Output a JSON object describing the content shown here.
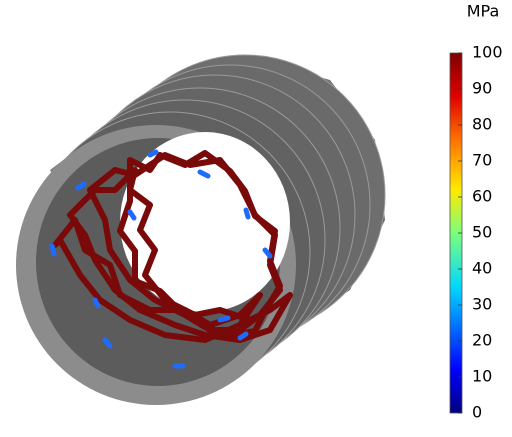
{
  "colorbar": {
    "unit": "MPa",
    "range": [
      0,
      100
    ],
    "ticks": [
      0,
      10,
      20,
      30,
      40,
      50,
      60,
      70,
      80,
      90,
      100
    ]
  }
}
